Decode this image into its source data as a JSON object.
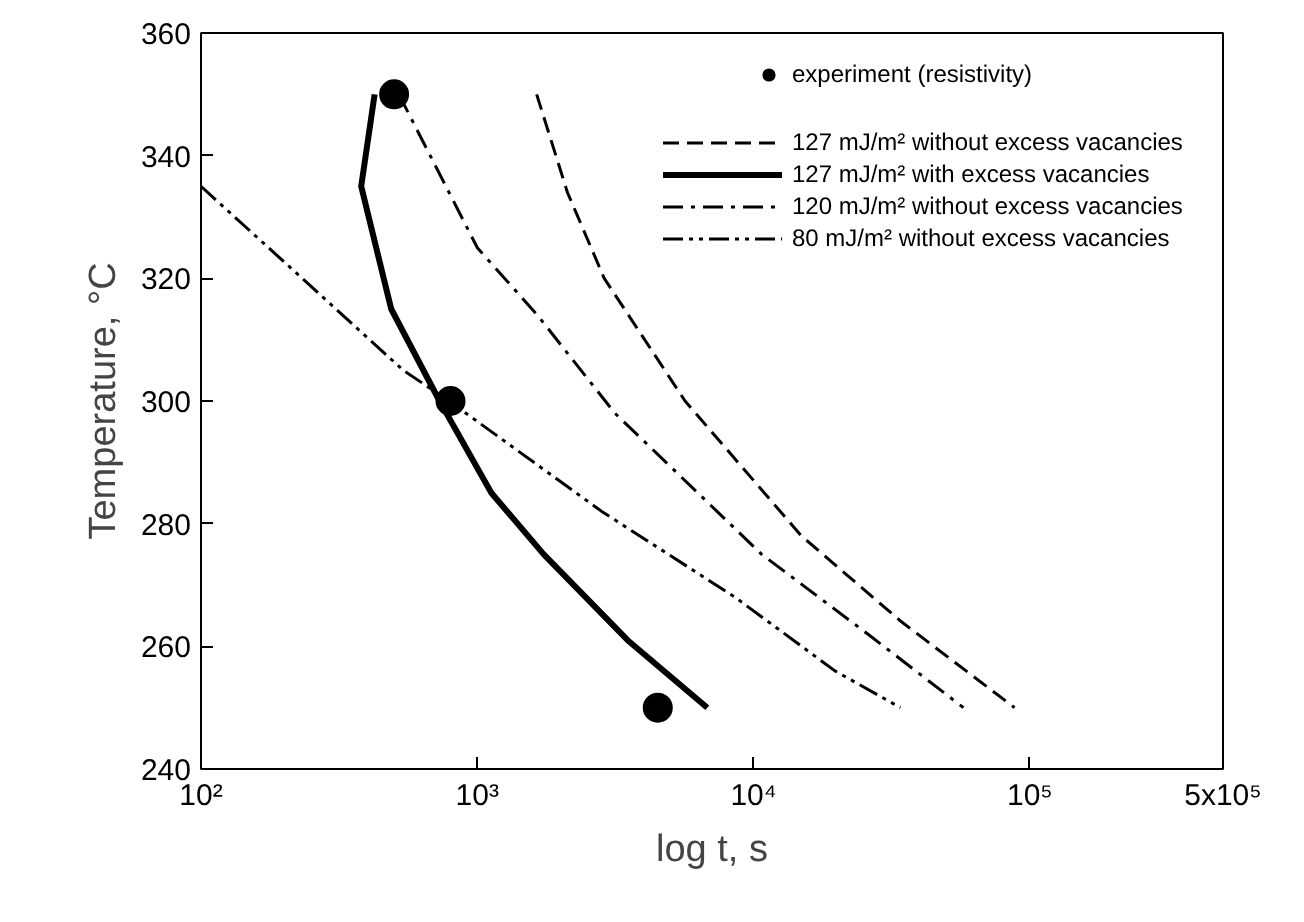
{
  "chart_data": {
    "type": "line",
    "xlabel": "log t, s",
    "ylabel": "Temperature, °C",
    "log": "x",
    "xlim": [
      100,
      500000
    ],
    "xticks": [
      {
        "value": 100,
        "label": "10²"
      },
      {
        "value": 1000,
        "label": "10³"
      },
      {
        "value": 10000,
        "label": "10⁴"
      },
      {
        "value": 100000,
        "label": "10⁵"
      },
      {
        "value": 500000,
        "label": "5x10⁵"
      }
    ],
    "ylim": [
      240,
      360
    ],
    "yticks": [
      240,
      260,
      280,
      300,
      320,
      340,
      360
    ],
    "grid": false,
    "legend": "top right",
    "series": [
      {
        "name": "experiment (resistivity)",
        "type": "scatter",
        "marker": "circle",
        "color": "#000000",
        "x": [
          500,
          800,
          4500
        ],
        "values": [
          350,
          300,
          250
        ]
      },
      {
        "name": "127 mJ/m² without excess vacancies",
        "line_style": "dashed",
        "color": "#000000",
        "x": [
          1640,
          2120,
          2880,
          5650,
          14900,
          34300,
          88000
        ],
        "values": [
          350,
          334,
          320,
          300,
          278,
          264,
          250
        ]
      },
      {
        "name": "127 mJ/m² with excess vacancies",
        "line_style": "solid",
        "color": "#000000",
        "x": [
          425,
          380,
          488,
          730,
          1125,
          1740,
          3500,
          6800
        ],
        "values": [
          350,
          335,
          315,
          300,
          285,
          275,
          261,
          250
        ]
      },
      {
        "name": "120 mJ/m² without excess vacancies",
        "line_style": "dashdot",
        "color": "#000000",
        "x": [
          520,
          1000,
          1650,
          3150,
          10700,
          25900,
          57500
        ],
        "values": [
          350,
          325,
          314,
          298,
          275,
          262,
          250
        ]
      },
      {
        "name": "80 mJ/m² without excess vacancies",
        "line_style": "dashdotdot",
        "color": "#000000",
        "x": [
          100,
          540,
          790,
          2820,
          8570,
          19700,
          34000
        ],
        "values": [
          335,
          305,
          300,
          282,
          268,
          256,
          250
        ]
      }
    ]
  }
}
